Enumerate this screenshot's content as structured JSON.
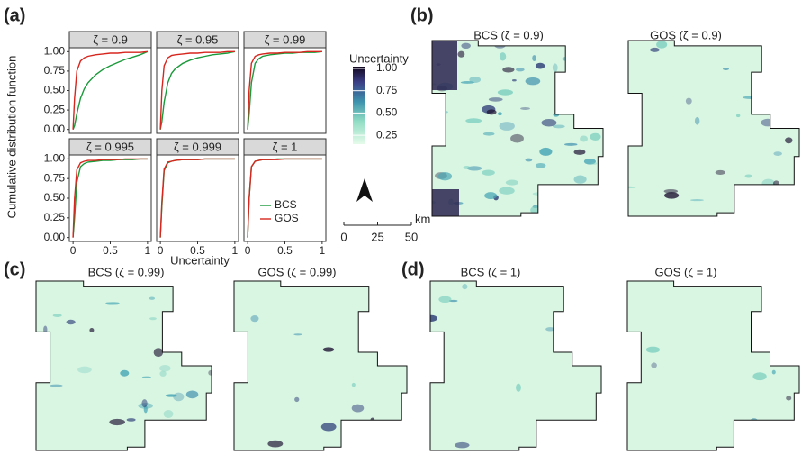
{
  "chart_data": {
    "type": "line",
    "ylabel": "Cumulative distribution function",
    "xlabel": "Uncertainty",
    "x": [
      0,
      0.02,
      0.05,
      0.1,
      0.15,
      0.2,
      0.3,
      0.4,
      0.5,
      0.6,
      0.7,
      0.8,
      0.9,
      1
    ],
    "xlim": [
      -0.05,
      1.05
    ],
    "ylim": [
      -0.05,
      1.05
    ],
    "xticks": [
      0,
      0.5,
      1
    ],
    "yticks": [
      {
        "value": 0,
        "label": "0.00"
      },
      {
        "value": 0.25,
        "label": "0.25"
      },
      {
        "value": 0.5,
        "label": "0.50"
      },
      {
        "value": 0.75,
        "label": "0.75"
      },
      {
        "value": 1,
        "label": "1.00"
      }
    ],
    "series": [
      {
        "name": "BCS",
        "color": "#1a9a3a"
      },
      {
        "name": "GOS",
        "color": "#d7261e"
      }
    ],
    "panels": [
      {
        "title": "ζ = 0.9",
        "values": [
          [
            0,
            0.05,
            0.2,
            0.4,
            0.52,
            0.6,
            0.7,
            0.77,
            0.82,
            0.86,
            0.9,
            0.93,
            0.96,
            1
          ],
          [
            0,
            0.4,
            0.75,
            0.88,
            0.92,
            0.94,
            0.96,
            0.97,
            0.98,
            0.98,
            0.99,
            0.99,
            0.99,
            1
          ]
        ]
      },
      {
        "title": "ζ = 0.95",
        "values": [
          [
            0,
            0.1,
            0.35,
            0.6,
            0.72,
            0.78,
            0.85,
            0.89,
            0.92,
            0.94,
            0.96,
            0.97,
            0.98,
            1
          ],
          [
            0,
            0.5,
            0.82,
            0.92,
            0.95,
            0.96,
            0.97,
            0.98,
            0.98,
            0.99,
            0.99,
            0.99,
            1,
            1
          ]
        ]
      },
      {
        "title": "ζ = 0.99",
        "values": [
          [
            0,
            0.2,
            0.6,
            0.85,
            0.91,
            0.94,
            0.96,
            0.97,
            0.98,
            0.98,
            0.99,
            0.99,
            0.99,
            1
          ],
          [
            0,
            0.5,
            0.85,
            0.94,
            0.96,
            0.97,
            0.98,
            0.98,
            0.99,
            0.99,
            0.99,
            1,
            1,
            1
          ]
        ]
      },
      {
        "title": "ζ = 0.995",
        "values": [
          [
            0,
            0.25,
            0.7,
            0.9,
            0.94,
            0.96,
            0.97,
            0.98,
            0.98,
            0.99,
            0.99,
            0.99,
            1,
            1
          ],
          [
            0,
            0.5,
            0.86,
            0.95,
            0.97,
            0.98,
            0.98,
            0.99,
            0.99,
            0.99,
            1,
            1,
            1,
            1
          ]
        ]
      },
      {
        "title": "ζ = 0.999",
        "values": [
          [
            0,
            0.4,
            0.85,
            0.95,
            0.97,
            0.98,
            0.99,
            0.99,
            0.99,
            1,
            1,
            1,
            1,
            1
          ],
          [
            0,
            0.45,
            0.87,
            0.96,
            0.97,
            0.98,
            0.99,
            0.99,
            0.99,
            1,
            1,
            1,
            1,
            1
          ]
        ]
      },
      {
        "title": "ζ = 1",
        "values": [
          [
            0,
            0.5,
            0.9,
            0.97,
            0.98,
            0.99,
            0.99,
            1,
            1,
            1,
            1,
            1,
            1,
            1
          ],
          [
            0,
            0.5,
            0.9,
            0.97,
            0.98,
            0.99,
            0.99,
            0.99,
            1,
            1,
            1,
            1,
            1,
            1
          ]
        ]
      }
    ]
  },
  "panel_label": "(a)",
  "colorbar": {
    "title": "Uncertainty",
    "lim": [
      0.15,
      1.02
    ],
    "ticks": [
      {
        "value": 0.25,
        "label": "0.25"
      },
      {
        "value": 0.5,
        "label": "0.50"
      },
      {
        "value": 0.75,
        "label": "0.75"
      },
      {
        "value": 1,
        "label": "1.00"
      }
    ]
  },
  "scalebar": {
    "unit": "km",
    "ticks": [
      0,
      25,
      50
    ]
  },
  "maps": [
    {
      "label": "(b)",
      "titles": [
        "BCS (ζ = 0.9)",
        "GOS (ζ = 0.9)"
      ]
    },
    {
      "label": "(c)",
      "titles": [
        "BCS (ζ = 0.99)",
        "GOS (ζ = 0.99)"
      ]
    },
    {
      "label": "(d)",
      "titles": [
        "BCS (ζ = 1)",
        "GOS (ζ = 1)"
      ]
    }
  ]
}
